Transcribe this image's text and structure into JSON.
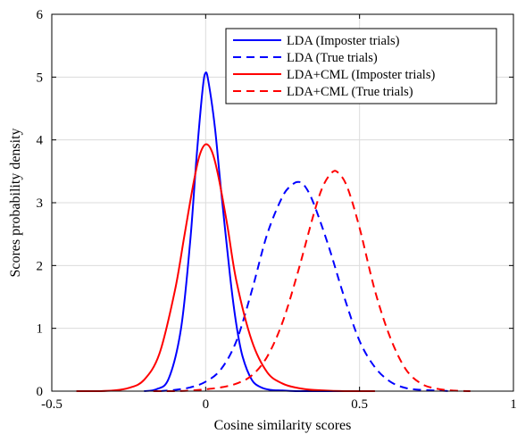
{
  "chart_data": {
    "type": "line",
    "title": "",
    "xlabel": "Cosine similarity scores",
    "ylabel": "Scores probability density",
    "xlim": [
      -0.5,
      1
    ],
    "ylim": [
      0,
      6
    ],
    "xticks": [
      -0.5,
      0,
      0.5,
      1
    ],
    "xtick_labels": [
      "-0.5",
      "0",
      "0.5",
      "1"
    ],
    "yticks": [
      0,
      1,
      2,
      3,
      4,
      5,
      6
    ],
    "ytick_labels": [
      "0",
      "1",
      "2",
      "3",
      "4",
      "5",
      "6"
    ],
    "grid": true,
    "legend_position": "top-right",
    "series": [
      {
        "name": "LDA (Imposter trials)",
        "color": "#0000ff",
        "linestyle": "solid",
        "x": [
          -0.2,
          -0.16,
          -0.12,
          -0.08,
          -0.05,
          -0.03,
          -0.01,
          0,
          0.01,
          0.03,
          0.05,
          0.08,
          0.1,
          0.12,
          0.15,
          0.18,
          0.21,
          0.25,
          0.3,
          0.35,
          0.4,
          0.45,
          0.5
        ],
        "y": [
          0.0,
          0.03,
          0.2,
          1.0,
          2.4,
          3.7,
          4.8,
          5.07,
          4.9,
          4.2,
          3.2,
          1.8,
          1.05,
          0.55,
          0.18,
          0.06,
          0.02,
          0.01,
          0.0,
          0.0,
          0.0,
          0.0,
          0.0
        ]
      },
      {
        "name": "LDA (True trials)",
        "color": "#0000ff",
        "linestyle": "dashed",
        "x": [
          -0.15,
          -0.1,
          -0.05,
          0,
          0.05,
          0.1,
          0.15,
          0.2,
          0.25,
          0.28,
          0.3,
          0.32,
          0.35,
          0.4,
          0.45,
          0.5,
          0.55,
          0.6,
          0.65,
          0.7,
          0.75,
          0.8
        ],
        "y": [
          0.0,
          0.02,
          0.06,
          0.15,
          0.35,
          0.8,
          1.6,
          2.5,
          3.1,
          3.28,
          3.33,
          3.28,
          3.0,
          2.3,
          1.5,
          0.8,
          0.38,
          0.15,
          0.05,
          0.02,
          0.01,
          0.0
        ]
      },
      {
        "name": "LDA+CML (Imposter trials)",
        "color": "#ff0000",
        "linestyle": "solid",
        "x": [
          -0.42,
          -0.35,
          -0.3,
          -0.25,
          -0.2,
          -0.15,
          -0.1,
          -0.07,
          -0.04,
          -0.02,
          0,
          0.02,
          0.04,
          0.07,
          0.1,
          0.15,
          0.2,
          0.25,
          0.3,
          0.35,
          0.45,
          0.55
        ],
        "y": [
          0.0,
          0.0,
          0.01,
          0.05,
          0.18,
          0.6,
          1.6,
          2.45,
          3.3,
          3.75,
          3.93,
          3.82,
          3.45,
          2.65,
          1.75,
          0.8,
          0.3,
          0.12,
          0.05,
          0.02,
          0.0,
          0.0
        ]
      },
      {
        "name": "LDA+CML (True trials)",
        "color": "#ff0000",
        "linestyle": "dashed",
        "x": [
          -0.17,
          -0.1,
          -0.05,
          0,
          0.05,
          0.1,
          0.15,
          0.2,
          0.25,
          0.3,
          0.35,
          0.38,
          0.41,
          0.43,
          0.46,
          0.5,
          0.55,
          0.6,
          0.65,
          0.7,
          0.75,
          0.8,
          0.86
        ],
        "y": [
          0.0,
          0.0,
          0.01,
          0.03,
          0.06,
          0.12,
          0.25,
          0.55,
          1.1,
          1.9,
          2.8,
          3.25,
          3.48,
          3.48,
          3.25,
          2.6,
          1.6,
          0.85,
          0.35,
          0.12,
          0.04,
          0.01,
          0.0
        ]
      }
    ]
  }
}
